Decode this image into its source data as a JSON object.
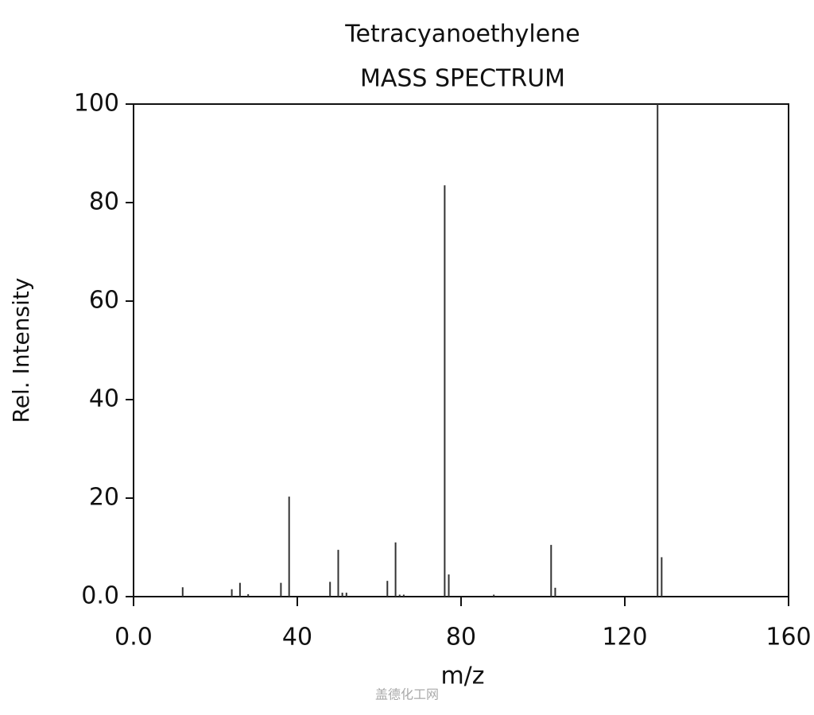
{
  "chart_data": {
    "type": "stem",
    "title": "Tetracyanoethylene",
    "subtitle": "MASS SPECTRUM",
    "x_label": "m/z",
    "y_label": "Rel. Intensity",
    "watermark": "盖德化工网",
    "x": [
      12,
      24,
      26,
      28,
      36,
      38,
      48,
      50,
      51,
      52,
      62,
      64,
      65,
      66,
      76,
      77,
      88,
      102,
      103,
      128,
      129
    ],
    "values": [
      1.9,
      1.5,
      2.8,
      0.5,
      2.8,
      20.3,
      3,
      9.5,
      0.8,
      0.8,
      3.2,
      11,
      0.4,
      0.4,
      83.5,
      4.5,
      0.4,
      10.5,
      1.8,
      100,
      8
    ],
    "color": "#333333",
    "xlim": [
      0,
      160
    ],
    "xticks": [
      {
        "value": 0,
        "label": "0.0"
      },
      40,
      80,
      120,
      160
    ],
    "ylim": [
      0,
      100
    ],
    "yticks": [
      {
        "value": 0,
        "label": "0.0"
      },
      20,
      40,
      60,
      80,
      100
    ]
  }
}
